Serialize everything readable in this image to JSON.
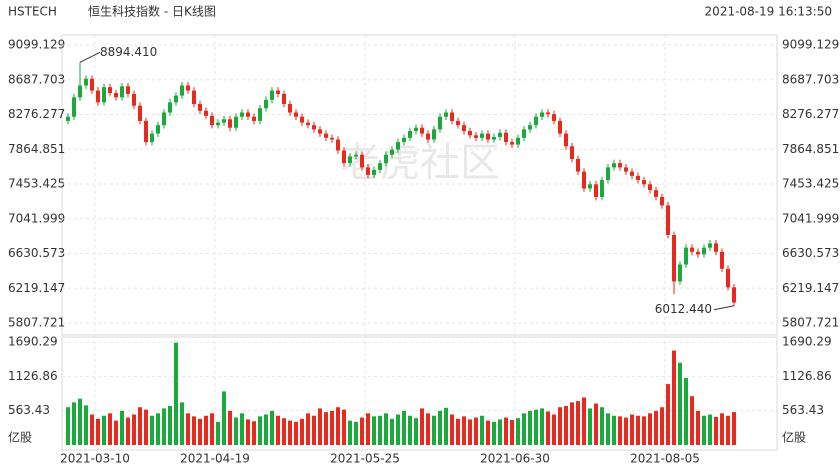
{
  "chart_data": {
    "type": "candlestick",
    "symbol": "HSTECH",
    "title": "恒生科技指数 - 日K线图",
    "timestamp": "2021-08-19 16:13:50",
    "watermark": "老虎社区",
    "volume_unit": "亿股",
    "categories": [
      null,
      null,
      null,
      null,
      "2021-03-10",
      null,
      null,
      null,
      null,
      null,
      null,
      null,
      null,
      null,
      null,
      null,
      null,
      null,
      null,
      null,
      null,
      null,
      null,
      null,
      "2021-04-19",
      null,
      null,
      null,
      null,
      null,
      null,
      null,
      null,
      null,
      null,
      null,
      null,
      null,
      null,
      null,
      null,
      null,
      null,
      null,
      null,
      null,
      null,
      null,
      null,
      "2021-05-25",
      null,
      null,
      null,
      null,
      null,
      null,
      null,
      null,
      null,
      null,
      null,
      null,
      null,
      null,
      null,
      null,
      null,
      null,
      null,
      null,
      null,
      null,
      null,
      null,
      "2021-06-30",
      null,
      null,
      null,
      null,
      null,
      null,
      null,
      null,
      null,
      null,
      null,
      null,
      null,
      null,
      null,
      null,
      null,
      null,
      null,
      null,
      null,
      null,
      null,
      null,
      "2021-08-05",
      null,
      null,
      null,
      null,
      null,
      null,
      null,
      null,
      null,
      null,
      null,
      null
    ],
    "open": [
      8200,
      8250,
      8480,
      8620,
      8700,
      8560,
      8420,
      8600,
      8530,
      8480,
      8610,
      8520,
      8380,
      8200,
      7950,
      8050,
      8150,
      8300,
      8420,
      8500,
      8620,
      8560,
      8400,
      8320,
      8260,
      8150,
      8180,
      8220,
      8120,
      8250,
      8300,
      8250,
      8200,
      8350,
      8450,
      8560,
      8520,
      8400,
      8300,
      8250,
      8180,
      8150,
      8100,
      8050,
      8000,
      7980,
      7850,
      7700,
      7780,
      7800,
      7650,
      7560,
      7620,
      7700,
      7800,
      7860,
      7950,
      8000,
      8080,
      8120,
      8050,
      7980,
      8100,
      8250,
      8300,
      8200,
      8150,
      8080,
      8030,
      8000,
      8050,
      7980,
      8010,
      8060,
      7950,
      7920,
      8000,
      8100,
      8150,
      8250,
      8300,
      8280,
      8200,
      8050,
      7900,
      7750,
      7600,
      7400,
      7450,
      7300,
      7500,
      7650,
      7700,
      7650,
      7600,
      7550,
      7500,
      7450,
      7380,
      7300,
      7200,
      6850,
      6300,
      6500,
      6700,
      6650,
      6620,
      6700,
      6750,
      6650,
      6450,
      6230
    ],
    "high": [
      8290,
      8520,
      8894.41,
      8740,
      8740,
      8600,
      8640,
      8640,
      8570,
      8650,
      8650,
      8560,
      8420,
      8240,
      8090,
      8190,
      8340,
      8460,
      8540,
      8660,
      8660,
      8600,
      8440,
      8360,
      8300,
      8220,
      8260,
      8260,
      8290,
      8340,
      8340,
      8290,
      8390,
      8490,
      8600,
      8600,
      8560,
      8440,
      8340,
      8290,
      8220,
      8190,
      8140,
      8090,
      8040,
      8020,
      7890,
      7820,
      7840,
      7840,
      7690,
      7660,
      7740,
      7840,
      7900,
      7990,
      8040,
      8120,
      8160,
      8160,
      8090,
      8140,
      8290,
      8340,
      8340,
      8240,
      8190,
      8120,
      8070,
      8090,
      8090,
      8050,
      8100,
      8100,
      7990,
      8040,
      8140,
      8190,
      8290,
      8340,
      8340,
      8320,
      8240,
      8090,
      7940,
      7790,
      7640,
      7490,
      7490,
      7540,
      7690,
      7740,
      7740,
      7690,
      7640,
      7590,
      7540,
      7490,
      7420,
      7340,
      7240,
      6890,
      6540,
      6740,
      6740,
      6690,
      6740,
      6790,
      6790,
      6690,
      6490,
      6270
    ],
    "low": [
      8160,
      8210,
      8440,
      8580,
      8520,
      8380,
      8380,
      8490,
      8440,
      8440,
      8480,
      8340,
      8160,
      7910,
      7910,
      8010,
      8110,
      8260,
      8380,
      8460,
      8520,
      8360,
      8280,
      8220,
      8110,
      8110,
      8140,
      8080,
      8080,
      8210,
      8210,
      8160,
      8160,
      8310,
      8410,
      8480,
      8360,
      8260,
      8210,
      8140,
      8110,
      8060,
      8010,
      7960,
      7940,
      7810,
      7660,
      7660,
      7740,
      7610,
      7520,
      7520,
      7580,
      7660,
      7760,
      7820,
      7910,
      7960,
      8040,
      8010,
      7940,
      7940,
      8060,
      8210,
      8160,
      8110,
      8040,
      7990,
      7960,
      7960,
      7940,
      7940,
      7970,
      7910,
      7880,
      7880,
      7960,
      8060,
      8110,
      8210,
      8240,
      8160,
      8010,
      7860,
      7710,
      7560,
      7360,
      7360,
      7260,
      7260,
      7460,
      7610,
      7610,
      7560,
      7510,
      7460,
      7410,
      7340,
      7260,
      7160,
      6810,
      6150,
      6260,
      6460,
      6610,
      6580,
      6580,
      6660,
      6610,
      6410,
      6190,
      6012.44
    ],
    "close": [
      8250,
      8480,
      8620,
      8700,
      8560,
      8420,
      8600,
      8530,
      8480,
      8610,
      8520,
      8380,
      8200,
      7950,
      8050,
      8150,
      8300,
      8420,
      8500,
      8620,
      8560,
      8400,
      8320,
      8260,
      8150,
      8180,
      8220,
      8120,
      8250,
      8300,
      8250,
      8200,
      8350,
      8450,
      8560,
      8520,
      8400,
      8300,
      8250,
      8180,
      8150,
      8100,
      8050,
      8000,
      7980,
      7850,
      7700,
      7780,
      7800,
      7650,
      7560,
      7620,
      7700,
      7800,
      7860,
      7950,
      8000,
      8080,
      8120,
      8050,
      7980,
      8100,
      8250,
      8300,
      8200,
      8150,
      8080,
      8030,
      8000,
      8050,
      7980,
      8010,
      8060,
      7950,
      7920,
      8000,
      8100,
      8150,
      8250,
      8300,
      8280,
      8200,
      8050,
      7900,
      7750,
      7600,
      7400,
      7450,
      7300,
      7500,
      7650,
      7700,
      7650,
      7600,
      7550,
      7500,
      7450,
      7380,
      7300,
      7200,
      6850,
      6300,
      6500,
      6700,
      6650,
      6620,
      6700,
      6750,
      6650,
      6450,
      6230,
      6050
    ],
    "volume": [
      620,
      700,
      760,
      650,
      500,
      430,
      480,
      520,
      400,
      560,
      450,
      500,
      620,
      580,
      480,
      520,
      600,
      640,
      1680,
      700,
      520,
      470,
      430,
      480,
      520,
      380,
      880,
      560,
      450,
      520,
      420,
      390,
      470,
      500,
      560,
      480,
      440,
      400,
      380,
      430,
      520,
      480,
      600,
      540,
      560,
      620,
      580,
      400,
      380,
      450,
      520,
      470,
      480,
      520,
      430,
      500,
      560,
      480,
      440,
      600,
      520,
      480,
      560,
      610,
      500,
      430,
      470,
      420,
      450,
      480,
      400,
      380,
      420,
      450,
      410,
      440,
      520,
      560,
      580,
      600,
      550,
      500,
      620,
      640,
      700,
      720,
      780,
      600,
      680,
      620,
      520,
      480,
      470,
      450,
      500,
      480,
      470,
      520,
      560,
      620,
      1000,
      1550,
      1350,
      1100,
      800,
      560,
      480,
      500,
      460,
      520,
      480,
      540
    ],
    "up_color": "#1aa93b",
    "down_color": "#e8291d",
    "ylim": [
      5807.721,
      9099.129
    ],
    "yticks": [
      5807.721,
      6219.147,
      6630.573,
      7041.999,
      7453.425,
      7864.851,
      8276.277,
      8687.703,
      9099.129
    ],
    "vlim": [
      0,
      1690.29
    ],
    "vticks": [
      563.43,
      1126.86,
      1690.29
    ],
    "annotations": [
      {
        "text": "8894.410",
        "value": 8894.41
      },
      {
        "text": "6012.440",
        "value": 6012.44
      }
    ],
    "grid": true
  }
}
